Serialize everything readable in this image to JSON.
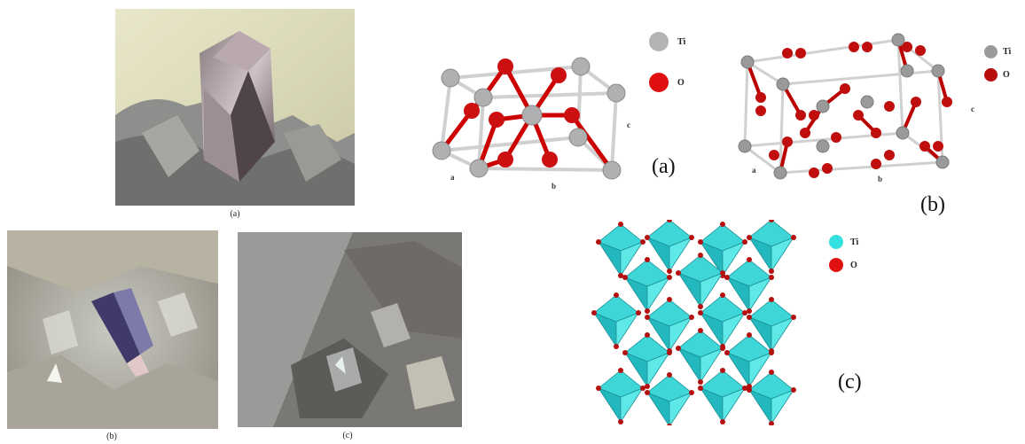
{
  "photos": {
    "a": {
      "caption": "(a)"
    },
    "b": {
      "caption": "(b)"
    },
    "c": {
      "caption": "(c)"
    }
  },
  "rutile": {
    "label": "(a)",
    "legend": [
      {
        "name": "Ti",
        "color": "#b4b4b4"
      },
      {
        "name": "O",
        "color": "#e01010"
      }
    ],
    "axes": {
      "a": "a",
      "b": "b",
      "c": "c"
    }
  },
  "anatase": {
    "label": "(b)",
    "legend": [
      {
        "name": "Ti",
        "color": "#9a9a9a"
      },
      {
        "name": "O",
        "color": "#b80e0e"
      }
    ],
    "axes": {
      "a": "a",
      "b": "b",
      "c": "c"
    }
  },
  "brookite": {
    "label": "(c)",
    "legend": [
      {
        "name": "Ti",
        "color": "#33e0e0"
      },
      {
        "name": "O",
        "color": "#e01010"
      }
    ]
  }
}
